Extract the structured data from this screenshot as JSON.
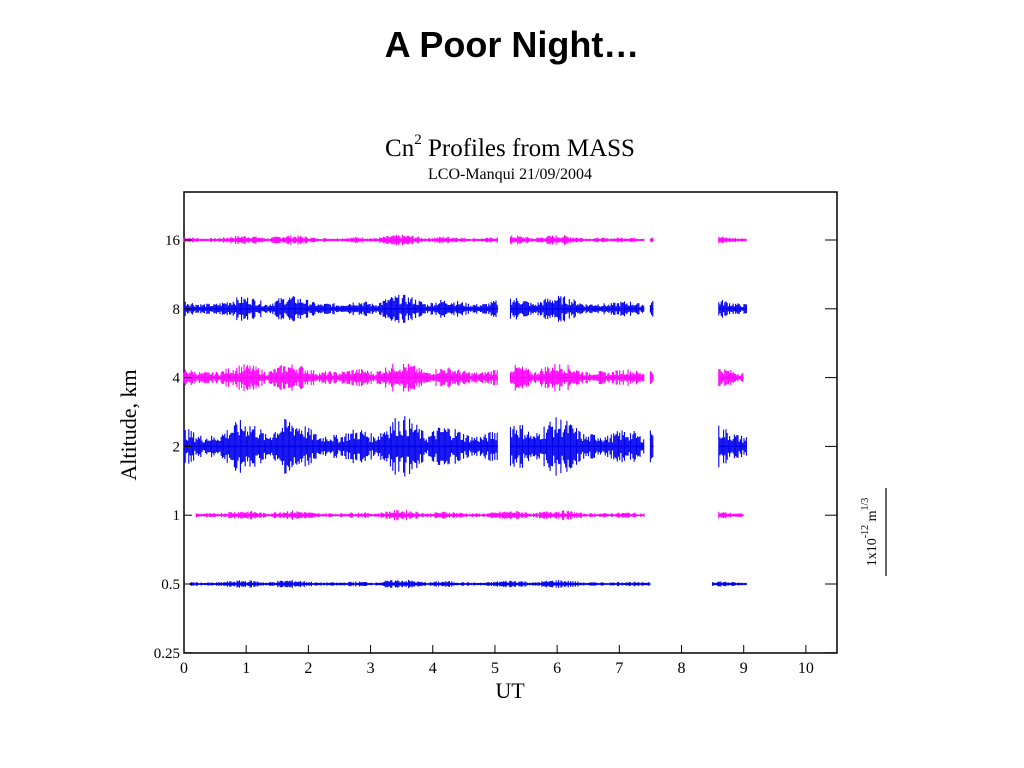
{
  "slide": {
    "title": "A Poor Night…"
  },
  "chart_data": {
    "type": "line",
    "title_main": "Cn",
    "title_sup": "2",
    "title_rest": " Profiles from MASS",
    "subtitle": "LCO-Manqui 21/09/2004",
    "xlabel": "UT",
    "ylabel": "Altitude, km",
    "xlim": [
      0,
      10.5
    ],
    "y_ticks": [
      "16",
      "8",
      "4",
      "2",
      "1",
      "0.5",
      "0.25"
    ],
    "x_ticks": [
      "0",
      "1",
      "2",
      "3",
      "4",
      "5",
      "6",
      "7",
      "8",
      "9",
      "10"
    ],
    "scale_label": {
      "base": "1x10",
      "exp1": "-12",
      "unit": " m",
      "exp2": "1/3"
    },
    "colors": {
      "magenta": "#ff00ff",
      "blue": "#0000ee",
      "frame": "#000000"
    },
    "series": [
      {
        "altitude": "16",
        "color": "magenta",
        "level": 0,
        "segments": [
          [
            0,
            5.05
          ],
          [
            5.25,
            7.4
          ],
          [
            7.5,
            7.55
          ],
          [
            8.6,
            9.05
          ]
        ],
        "amplitude": 0.12
      },
      {
        "altitude": "8",
        "color": "blue",
        "level": 1,
        "segments": [
          [
            0,
            5.05
          ],
          [
            5.25,
            7.4
          ],
          [
            7.5,
            7.55
          ],
          [
            8.6,
            9.05
          ]
        ],
        "amplitude": 0.32
      },
      {
        "altitude": "4",
        "color": "magenta",
        "level": 2,
        "segments": [
          [
            0,
            5.05
          ],
          [
            5.25,
            7.4
          ],
          [
            7.5,
            7.55
          ],
          [
            8.6,
            9.0
          ]
        ],
        "amplitude": 0.35
      },
      {
        "altitude": "2",
        "color": "blue",
        "level": 3,
        "segments": [
          [
            0,
            5.05
          ],
          [
            5.25,
            7.4
          ],
          [
            7.5,
            7.55
          ],
          [
            8.6,
            9.05
          ]
        ],
        "amplitude": 0.7
      },
      {
        "altitude": "1",
        "color": "magenta",
        "level": 4,
        "segments": [
          [
            0.2,
            7.4
          ],
          [
            8.6,
            9.0
          ]
        ],
        "amplitude": 0.12
      },
      {
        "altitude": "0.5",
        "color": "blue",
        "level": 5,
        "segments": [
          [
            0.1,
            7.5
          ],
          [
            8.5,
            9.05
          ]
        ],
        "amplitude": 0.1
      }
    ]
  }
}
